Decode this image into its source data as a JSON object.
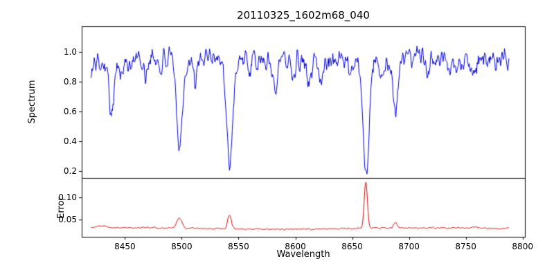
{
  "chart_data": {
    "type": "line",
    "title": "20110325_1602m68_040",
    "xlabel": "Wavelength",
    "x_range": [
      8420,
      8788
    ],
    "xlim": [
      8412,
      8802
    ],
    "grid": false,
    "legend": "none",
    "xticks": {
      "values": [
        8450,
        8500,
        8550,
        8600,
        8650,
        8700,
        8750,
        8800
      ],
      "labels": [
        "8450",
        "8500",
        "8550",
        "8600",
        "8650",
        "8700",
        "8750",
        "8800"
      ]
    },
    "panels": [
      {
        "id": "spectrum",
        "ylabel": "Spectrum",
        "color": "#0000dd",
        "ylim": [
          0.153,
          1.172
        ],
        "ytick_values": [
          0.2,
          0.4,
          0.6,
          0.8,
          1.0
        ],
        "ytick_labels": [
          "0.2",
          "0.4",
          "0.6",
          "0.8",
          "1.0"
        ],
        "baseline": 0.95,
        "noise": 0.05,
        "undulation": [
          {
            "amp": 0.018,
            "period": 9.5,
            "phase": 0
          },
          {
            "amp": 0.012,
            "period": 23,
            "phase": 2
          }
        ],
        "features": [
          {
            "center": 8419,
            "amp": -0.14,
            "sigma": 3
          },
          {
            "center": 8438,
            "amp": -0.3,
            "sigma": 2.2
          },
          {
            "center": 8447,
            "amp": -0.09,
            "sigma": 1.5
          },
          {
            "center": 8468,
            "amp": -0.12,
            "sigma": 1.8
          },
          {
            "center": 8481,
            "amp": -0.07,
            "sigma": 1.5
          },
          {
            "center": 8498,
            "amp": -0.54,
            "sigma": 2.6
          },
          {
            "center": 8512,
            "amp": -0.2,
            "sigma": 1.5
          },
          {
            "center": 8542,
            "amp": -0.72,
            "sigma": 2.8
          },
          {
            "center": 8560,
            "amp": -0.08,
            "sigma": 1.5
          },
          {
            "center": 8582,
            "amp": -0.17,
            "sigma": 1.8
          },
          {
            "center": 8598,
            "amp": -0.1,
            "sigma": 1.5
          },
          {
            "center": 8612,
            "amp": -0.12,
            "sigma": 1.5
          },
          {
            "center": 8622,
            "amp": -0.1,
            "sigma": 1.5
          },
          {
            "center": 8648,
            "amp": -0.08,
            "sigma": 1.5
          },
          {
            "center": 8662,
            "amp": -0.77,
            "sigma": 2.8
          },
          {
            "center": 8675,
            "amp": -0.14,
            "sigma": 1.5
          },
          {
            "center": 8688,
            "amp": -0.33,
            "sigma": 2.0
          },
          {
            "center": 8717,
            "amp": -0.1,
            "sigma": 1.5
          },
          {
            "center": 8736,
            "amp": -0.1,
            "sigma": 1.5
          },
          {
            "center": 8757,
            "amp": -0.09,
            "sigma": 1.5
          },
          {
            "center": 8776,
            "amp": -0.08,
            "sigma": 1.5
          }
        ]
      },
      {
        "id": "error",
        "ylabel": "Error",
        "color": "#dd0000",
        "ylim": [
          0.011,
          0.144
        ],
        "ytick_values": [
          0.05,
          0.1
        ],
        "ytick_labels": [
          "0.05",
          "0.10"
        ],
        "baseline": 0.03,
        "noise": 0.0012,
        "undulation": [
          {
            "amp": 0.0015,
            "period": 40,
            "phase": 0
          }
        ],
        "features": [
          {
            "center": 8428,
            "amp": 0.005,
            "sigma": 5
          },
          {
            "center": 8498,
            "amp": 0.022,
            "sigma": 2.2
          },
          {
            "center": 8542,
            "amp": 0.031,
            "sigma": 1.6
          },
          {
            "center": 8662,
            "amp": 0.106,
            "sigma": 1.4
          },
          {
            "center": 8688,
            "amp": 0.013,
            "sigma": 1.5
          },
          {
            "center": 8757,
            "amp": 0.004,
            "sigma": 2
          }
        ]
      }
    ]
  }
}
